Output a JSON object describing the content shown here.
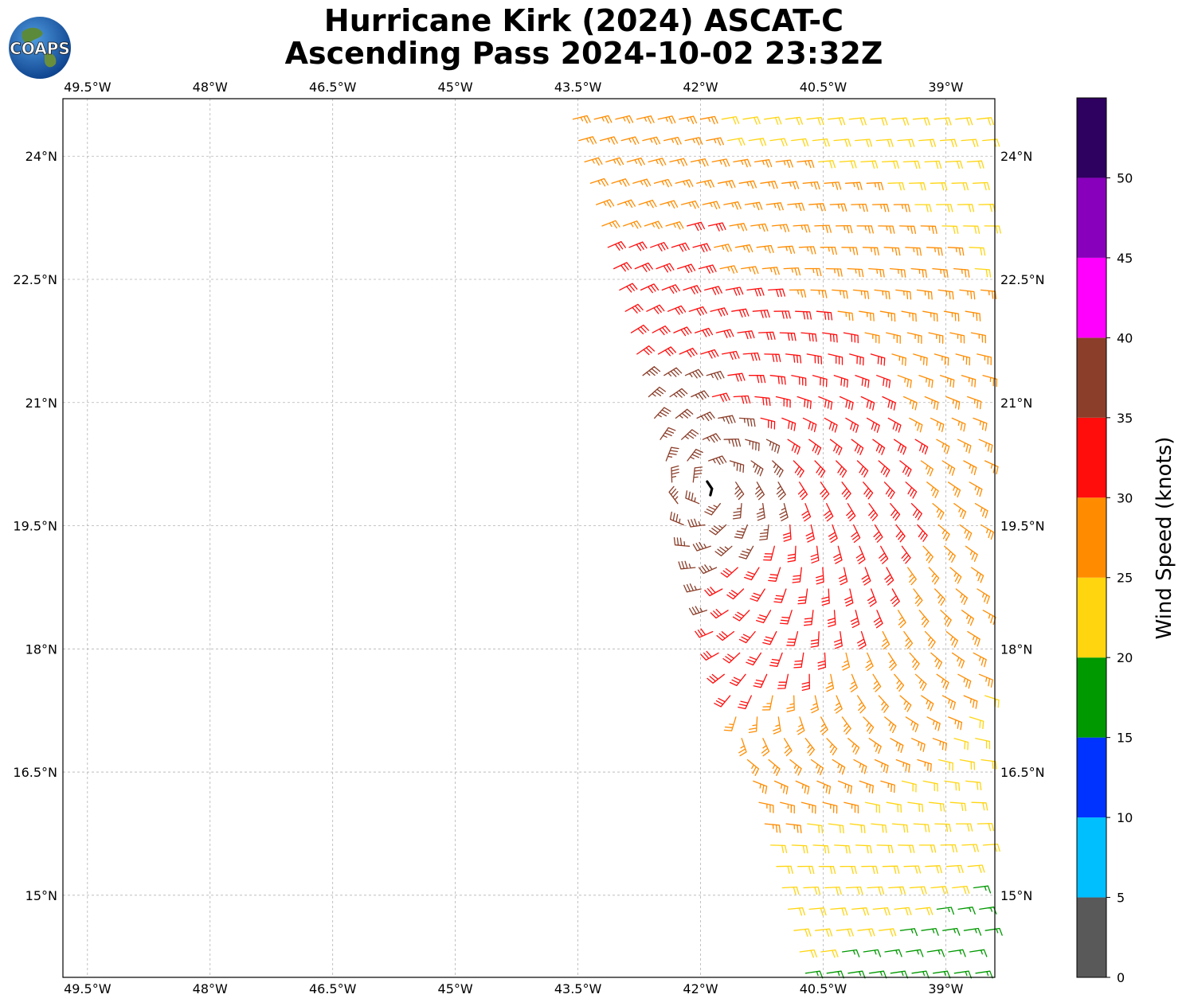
{
  "title": {
    "line1": "Hurricane Kirk (2024) ASCAT-C",
    "line2": "Ascending Pass 2024-10-02 23:32Z"
  },
  "logo": {
    "text": "COAPS",
    "icon": "globe-icon"
  },
  "map": {
    "lon_range": [
      -49.8,
      -38.4
    ],
    "lat_range": [
      14.0,
      24.7
    ],
    "gridlines": true,
    "lon_ticks": [
      {
        "value": -49.5,
        "label": "49.5°W"
      },
      {
        "value": -48.0,
        "label": "48°W"
      },
      {
        "value": -46.5,
        "label": "46.5°W"
      },
      {
        "value": -45.0,
        "label": "45°W"
      },
      {
        "value": -43.5,
        "label": "43.5°W"
      },
      {
        "value": -42.0,
        "label": "42°W"
      },
      {
        "value": -40.5,
        "label": "40.5°W"
      },
      {
        "value": -39.0,
        "label": "39°W"
      }
    ],
    "lat_ticks": [
      {
        "value": 24.0,
        "label": "24°N"
      },
      {
        "value": 22.5,
        "label": "22.5°N"
      },
      {
        "value": 21.0,
        "label": "21°N"
      },
      {
        "value": 19.5,
        "label": "19.5°N"
      },
      {
        "value": 18.0,
        "label": "18°N"
      },
      {
        "value": 16.5,
        "label": "16.5°N"
      },
      {
        "value": 15.0,
        "label": "15°N"
      }
    ],
    "center": {
      "lon": -41.88,
      "lat": 19.95
    },
    "swath": {
      "top_left_lon": -43.6,
      "top_lat": 24.6,
      "bottom_left_lon": -40.7,
      "bottom_lat": 14.0,
      "right_lon": -38.5
    }
  },
  "colorbar": {
    "label": "Wind Speed (knots)",
    "bins": [
      {
        "min": 0,
        "max": 5,
        "color": "#595959"
      },
      {
        "min": 5,
        "max": 10,
        "color": "#00bfff"
      },
      {
        "min": 10,
        "max": 15,
        "color": "#0033ff"
      },
      {
        "min": 15,
        "max": 20,
        "color": "#009900"
      },
      {
        "min": 20,
        "max": 25,
        "color": "#ffd510"
      },
      {
        "min": 25,
        "max": 30,
        "color": "#ff8c00"
      },
      {
        "min": 30,
        "max": 35,
        "color": "#ff0d0d"
      },
      {
        "min": 35,
        "max": 40,
        "color": "#8b3e2a"
      },
      {
        "min": 40,
        "max": 45,
        "color": "#ff00ff"
      },
      {
        "min": 45,
        "max": 50,
        "color": "#8800bb"
      },
      {
        "min": 50,
        "max": 55,
        "color": "#2e0060"
      }
    ],
    "ticks": [
      "0",
      "5",
      "10",
      "15",
      "20",
      "25",
      "30",
      "35",
      "40",
      "45",
      "50"
    ]
  }
}
